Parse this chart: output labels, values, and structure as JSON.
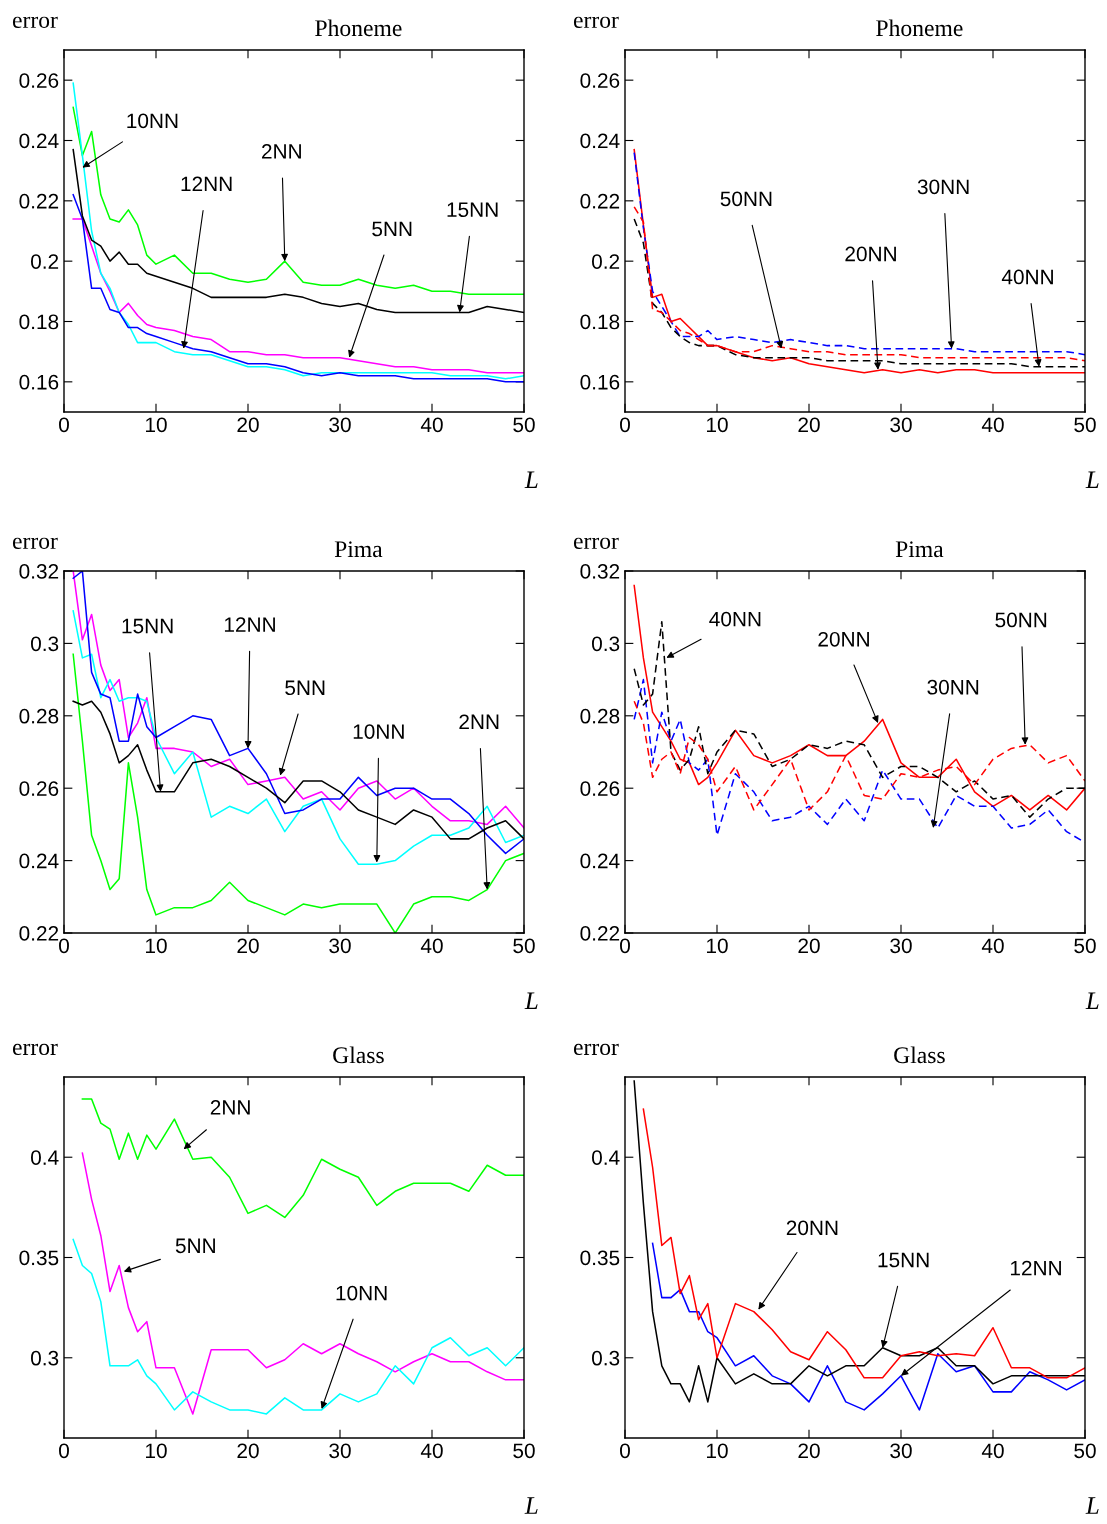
{
  "chart_data": [
    {
      "type": "line",
      "title": "Phoneme",
      "xlabel": "L",
      "ylabel": "error",
      "x": [
        1,
        2,
        3,
        4,
        5,
        6,
        7,
        8,
        9,
        10,
        12,
        14,
        16,
        18,
        20,
        22,
        24,
        26,
        28,
        30,
        32,
        34,
        36,
        38,
        40,
        42,
        44,
        46,
        48,
        50
      ],
      "xlim": [
        0,
        50
      ],
      "xticks": [
        0,
        10,
        20,
        30,
        40,
        50
      ],
      "ylim": [
        0.15,
        0.27
      ],
      "yticks": [
        0.16,
        0.18,
        0.2,
        0.22,
        0.24,
        0.26
      ],
      "grid": false,
      "series": [
        {
          "color": "#00ff00",
          "line_style": "solid",
          "values": [
            0.251,
            0.235,
            0.243,
            0.222,
            0.214,
            0.213,
            0.217,
            0.212,
            0.202,
            0.199,
            0.202,
            0.196,
            0.196,
            0.194,
            0.193,
            0.194,
            0.2,
            0.193,
            0.192,
            0.192,
            0.194,
            0.192,
            0.191,
            0.192,
            0.19,
            0.19,
            0.189,
            0.189,
            0.189,
            0.189
          ]
        },
        {
          "color": "#ff00ff",
          "line_style": "solid",
          "values": [
            0.214,
            0.214,
            0.205,
            0.196,
            0.19,
            0.183,
            0.186,
            0.182,
            0.179,
            0.178,
            0.177,
            0.175,
            0.174,
            0.17,
            0.17,
            0.169,
            0.169,
            0.168,
            0.168,
            0.168,
            0.167,
            0.166,
            0.165,
            0.165,
            0.164,
            0.164,
            0.164,
            0.163,
            0.163,
            0.163
          ]
        },
        {
          "color": "#00ffff",
          "line_style": "solid",
          "values": [
            0.259,
            0.235,
            0.21,
            0.196,
            0.191,
            0.183,
            0.179,
            0.173,
            0.173,
            0.173,
            0.17,
            0.169,
            0.169,
            0.167,
            0.165,
            0.165,
            0.164,
            0.162,
            0.163,
            0.163,
            0.163,
            0.163,
            0.163,
            0.163,
            0.163,
            0.162,
            0.162,
            0.162,
            0.161,
            0.162
          ]
        },
        {
          "color": "#0000ff",
          "line_style": "solid",
          "values": [
            0.222,
            0.214,
            0.191,
            0.191,
            0.184,
            0.183,
            0.178,
            0.178,
            0.176,
            0.175,
            0.173,
            0.171,
            0.17,
            0.168,
            0.166,
            0.166,
            0.165,
            0.163,
            0.162,
            0.163,
            0.162,
            0.162,
            0.162,
            0.161,
            0.161,
            0.161,
            0.161,
            0.161,
            0.16,
            0.16
          ]
        },
        {
          "color": "#000000",
          "line_style": "solid",
          "values": [
            0.237,
            0.215,
            0.207,
            0.205,
            0.2,
            0.203,
            0.199,
            0.199,
            0.196,
            0.195,
            0.193,
            0.191,
            0.188,
            0.188,
            0.188,
            0.188,
            0.189,
            0.188,
            0.186,
            0.185,
            0.186,
            0.184,
            0.183,
            0.183,
            0.183,
            0.183,
            0.183,
            0.185,
            0.184,
            0.183
          ]
        }
      ],
      "annotations": [
        {
          "text": "10NN",
          "x": 2,
          "y": 0.231
        },
        {
          "text": "12NN",
          "x": 13,
          "y": 0.171
        },
        {
          "text": "2NN",
          "x": 24,
          "y": 0.2
        },
        {
          "text": "5NN",
          "x": 31,
          "y": 0.168
        },
        {
          "text": "15NN",
          "x": 43,
          "y": 0.183
        }
      ]
    },
    {
      "type": "line",
      "title": "Phoneme",
      "xlabel": "L",
      "ylabel": "error",
      "x": [
        1,
        2,
        3,
        4,
        5,
        6,
        7,
        8,
        9,
        10,
        12,
        14,
        16,
        18,
        20,
        22,
        24,
        26,
        28,
        30,
        32,
        34,
        36,
        38,
        40,
        42,
        44,
        46,
        48,
        50
      ],
      "xlim": [
        0,
        50
      ],
      "xticks": [
        0,
        10,
        20,
        30,
        40,
        50
      ],
      "ylim": [
        0.15,
        0.27
      ],
      "yticks": [
        0.16,
        0.18,
        0.2,
        0.22,
        0.24,
        0.26
      ],
      "grid": false,
      "series": [
        {
          "color": "#ff0000",
          "line_style": "solid",
          "values": [
            0.237,
            0.212,
            0.188,
            0.189,
            0.18,
            0.181,
            0.178,
            0.175,
            0.172,
            0.172,
            0.17,
            0.168,
            0.167,
            0.168,
            0.166,
            0.165,
            0.164,
            0.163,
            0.164,
            0.163,
            0.164,
            0.163,
            0.164,
            0.164,
            0.163,
            0.163,
            0.163,
            0.163,
            0.163,
            0.163
          ]
        },
        {
          "color": "#0000ff",
          "line_style": "dashed",
          "values": [
            0.236,
            0.211,
            0.19,
            0.185,
            0.18,
            0.175,
            0.175,
            0.175,
            0.177,
            0.174,
            0.175,
            0.174,
            0.173,
            0.174,
            0.173,
            0.172,
            0.172,
            0.171,
            0.171,
            0.171,
            0.171,
            0.171,
            0.171,
            0.17,
            0.17,
            0.17,
            0.17,
            0.17,
            0.17,
            0.169
          ]
        },
        {
          "color": "#000000",
          "line_style": "dashed",
          "values": [
            0.214,
            0.206,
            0.186,
            0.183,
            0.178,
            0.175,
            0.173,
            0.172,
            0.172,
            0.172,
            0.169,
            0.168,
            0.168,
            0.168,
            0.168,
            0.167,
            0.167,
            0.167,
            0.167,
            0.166,
            0.166,
            0.166,
            0.166,
            0.166,
            0.166,
            0.166,
            0.165,
            0.165,
            0.165,
            0.165
          ]
        },
        {
          "color": "#ff0000",
          "line_style": "dashed",
          "values": [
            0.218,
            0.213,
            0.184,
            0.183,
            0.18,
            0.177,
            0.176,
            0.174,
            0.172,
            0.172,
            0.17,
            0.17,
            0.172,
            0.171,
            0.17,
            0.17,
            0.169,
            0.169,
            0.169,
            0.169,
            0.168,
            0.168,
            0.168,
            0.168,
            0.168,
            0.168,
            0.168,
            0.168,
            0.168,
            0.167
          ]
        }
      ],
      "annotations": [
        {
          "text": "50NN",
          "x": 17,
          "y": 0.171
        },
        {
          "text": "20NN",
          "x": 27.5,
          "y": 0.164
        },
        {
          "text": "30NN",
          "x": 35.5,
          "y": 0.171
        },
        {
          "text": "40NN",
          "x": 45,
          "y": 0.165
        }
      ]
    },
    {
      "type": "line",
      "title": "Pima",
      "xlabel": "L",
      "ylabel": "error",
      "x": [
        1,
        2,
        3,
        4,
        5,
        6,
        7,
        8,
        9,
        10,
        12,
        14,
        16,
        18,
        20,
        22,
        24,
        26,
        28,
        30,
        32,
        34,
        36,
        38,
        40,
        42,
        44,
        46,
        48,
        50
      ],
      "xlim": [
        0,
        50
      ],
      "xticks": [
        0,
        10,
        20,
        30,
        40,
        50
      ],
      "ylim": [
        0.22,
        0.32
      ],
      "yticks": [
        0.22,
        0.24,
        0.26,
        0.28,
        0.3,
        0.32
      ],
      "grid": false,
      "series": [
        {
          "color": "#00ff00",
          "line_style": "solid",
          "values": [
            0.297,
            0.273,
            0.247,
            0.24,
            0.232,
            0.235,
            0.267,
            0.252,
            0.232,
            0.225,
            0.227,
            0.227,
            0.229,
            0.234,
            0.229,
            0.227,
            0.225,
            0.228,
            0.227,
            0.228,
            0.228,
            0.228,
            0.22,
            0.228,
            0.23,
            0.23,
            0.229,
            0.232,
            0.24,
            0.242
          ]
        },
        {
          "color": "#ff00ff",
          "line_style": "solid",
          "values": [
            0.32,
            0.301,
            0.308,
            0.294,
            0.287,
            0.29,
            0.274,
            0.278,
            0.285,
            0.271,
            0.271,
            0.27,
            0.266,
            0.268,
            0.261,
            0.262,
            0.263,
            0.257,
            0.259,
            0.254,
            0.26,
            0.262,
            0.257,
            0.26,
            0.255,
            0.251,
            0.251,
            0.25,
            0.255,
            0.249
          ]
        },
        {
          "color": "#00ffff",
          "line_style": "solid",
          "values": [
            0.309,
            0.296,
            0.297,
            0.285,
            0.29,
            0.284,
            0.285,
            0.285,
            0.284,
            0.274,
            0.264,
            0.27,
            0.252,
            0.255,
            0.253,
            0.257,
            0.248,
            0.255,
            0.257,
            0.246,
            0.239,
            0.239,
            0.24,
            0.244,
            0.247,
            0.247,
            0.249,
            0.255,
            0.245,
            0.247
          ]
        },
        {
          "color": "#0000ff",
          "line_style": "solid",
          "values": [
            0.318,
            0.32,
            0.292,
            0.286,
            0.285,
            0.273,
            0.273,
            0.286,
            0.277,
            0.274,
            0.277,
            0.28,
            0.279,
            0.269,
            0.271,
            0.264,
            0.253,
            0.254,
            0.257,
            0.257,
            0.263,
            0.258,
            0.26,
            0.26,
            0.257,
            0.257,
            0.253,
            0.247,
            0.242,
            0.246
          ]
        },
        {
          "color": "#000000",
          "line_style": "solid",
          "values": [
            0.284,
            0.283,
            0.284,
            0.281,
            0.275,
            0.267,
            0.269,
            0.272,
            0.265,
            0.259,
            0.259,
            0.267,
            0.268,
            0.266,
            0.263,
            0.26,
            0.256,
            0.262,
            0.262,
            0.259,
            0.254,
            0.252,
            0.25,
            0.254,
            0.252,
            0.246,
            0.246,
            0.249,
            0.251,
            0.246
          ]
        }
      ],
      "annotations": [
        {
          "text": "15NN",
          "x": 10.5,
          "y": 0.259
        },
        {
          "text": "12NN",
          "x": 20,
          "y": 0.271
        },
        {
          "text": "5NN",
          "x": 23.5,
          "y": 0.2635
        },
        {
          "text": "10NN",
          "x": 34,
          "y": 0.2395
        },
        {
          "text": "2NN",
          "x": 46,
          "y": 0.232
        }
      ]
    },
    {
      "type": "line",
      "title": "Pima",
      "xlabel": "L",
      "ylabel": "error",
      "x": [
        1,
        2,
        3,
        4,
        5,
        6,
        7,
        8,
        9,
        10,
        12,
        14,
        16,
        18,
        20,
        22,
        24,
        26,
        28,
        30,
        32,
        34,
        36,
        38,
        40,
        42,
        44,
        46,
        48,
        50
      ],
      "xlim": [
        0,
        50
      ],
      "xticks": [
        0,
        10,
        20,
        30,
        40,
        50
      ],
      "ylim": [
        0.22,
        0.32
      ],
      "yticks": [
        0.22,
        0.24,
        0.26,
        0.28,
        0.3,
        0.32
      ],
      "grid": false,
      "series": [
        {
          "color": "#ff0000",
          "line_style": "solid",
          "values": [
            0.316,
            0.296,
            0.281,
            0.277,
            0.273,
            0.268,
            0.267,
            0.261,
            0.263,
            0.267,
            0.276,
            0.269,
            0.267,
            0.269,
            0.272,
            0.269,
            0.269,
            0.273,
            0.279,
            0.267,
            0.263,
            0.263,
            0.268,
            0.259,
            0.255,
            0.258,
            0.254,
            0.258,
            0.254,
            0.26
          ]
        },
        {
          "color": "#0000ff",
          "line_style": "dashed",
          "values": [
            0.279,
            0.29,
            0.267,
            0.281,
            0.273,
            0.279,
            0.267,
            0.265,
            0.268,
            0.247,
            0.264,
            0.259,
            0.251,
            0.252,
            0.255,
            0.25,
            0.257,
            0.251,
            0.265,
            0.257,
            0.257,
            0.249,
            0.258,
            0.255,
            0.255,
            0.249,
            0.25,
            0.254,
            0.248,
            0.245
          ]
        },
        {
          "color": "#000000",
          "line_style": "dashed",
          "values": [
            0.293,
            0.283,
            0.286,
            0.306,
            0.27,
            0.265,
            0.268,
            0.277,
            0.264,
            0.27,
            0.276,
            0.275,
            0.266,
            0.268,
            0.272,
            0.271,
            0.273,
            0.272,
            0.263,
            0.266,
            0.266,
            0.263,
            0.259,
            0.262,
            0.257,
            0.258,
            0.252,
            0.257,
            0.26,
            0.26
          ]
        },
        {
          "color": "#ff0000",
          "line_style": "dashed",
          "values": [
            0.284,
            0.278,
            0.263,
            0.268,
            0.27,
            0.264,
            0.274,
            0.272,
            0.268,
            0.259,
            0.266,
            0.254,
            0.261,
            0.268,
            0.254,
            0.259,
            0.269,
            0.258,
            0.257,
            0.264,
            0.263,
            0.265,
            0.266,
            0.261,
            0.268,
            0.271,
            0.272,
            0.267,
            0.269,
            0.262
          ]
        }
      ],
      "annotations": [
        {
          "text": "40NN",
          "x": 4.5,
          "y": 0.296
        },
        {
          "text": "20NN",
          "x": 27.5,
          "y": 0.278
        },
        {
          "text": "30NN",
          "x": 33.5,
          "y": 0.249
        },
        {
          "text": "50NN",
          "x": 43.5,
          "y": 0.272
        }
      ]
    },
    {
      "type": "line",
      "title": "Glass",
      "xlabel": "L",
      "ylabel": "error",
      "x": [
        1,
        2,
        3,
        4,
        5,
        6,
        7,
        8,
        9,
        10,
        12,
        14,
        16,
        18,
        20,
        22,
        24,
        26,
        28,
        30,
        32,
        34,
        36,
        38,
        40,
        42,
        44,
        46,
        48,
        50
      ],
      "xlim": [
        0,
        50
      ],
      "xticks": [
        0,
        10,
        20,
        30,
        40,
        50
      ],
      "ylim": [
        0.26,
        0.44
      ],
      "yticks": [
        0.3,
        0.35,
        0.4
      ],
      "grid": false,
      "series": [
        {
          "color": "#00ff00",
          "line_style": "solid",
          "values": [
            null,
            0.429,
            0.429,
            0.417,
            0.414,
            0.399,
            0.412,
            0.399,
            0.411,
            0.404,
            0.419,
            0.399,
            0.4,
            0.39,
            0.372,
            0.376,
            0.37,
            0.381,
            0.399,
            0.394,
            0.39,
            0.376,
            0.383,
            0.387,
            0.387,
            0.387,
            0.383,
            0.396,
            0.391,
            0.391
          ]
        },
        {
          "color": "#ff00ff",
          "line_style": "solid",
          "values": [
            null,
            0.402,
            0.379,
            0.361,
            0.333,
            0.346,
            0.325,
            0.313,
            0.318,
            0.295,
            0.295,
            0.272,
            0.304,
            0.304,
            0.304,
            0.295,
            0.299,
            0.307,
            0.302,
            0.307,
            0.302,
            0.298,
            0.293,
            0.298,
            0.302,
            0.298,
            0.298,
            0.293,
            0.289,
            0.289
          ]
        },
        {
          "color": "#00ffff",
          "line_style": "solid",
          "values": [
            0.359,
            0.346,
            0.342,
            0.328,
            0.296,
            0.296,
            0.296,
            0.299,
            0.291,
            0.287,
            0.274,
            0.283,
            0.278,
            0.274,
            0.274,
            0.272,
            0.28,
            0.274,
            0.274,
            0.282,
            0.278,
            0.282,
            0.296,
            0.287,
            0.305,
            0.31,
            0.301,
            0.305,
            0.296,
            0.305
          ]
        }
      ],
      "annotations": [
        {
          "text": "2NN",
          "x": 13,
          "y": 0.404
        },
        {
          "text": "5NN",
          "x": 6.5,
          "y": 0.343
        },
        {
          "text": "10NN",
          "x": 28,
          "y": 0.2745
        }
      ]
    },
    {
      "type": "line",
      "title": "Glass",
      "xlabel": "L",
      "ylabel": "error",
      "x": [
        1,
        2,
        3,
        4,
        5,
        6,
        7,
        8,
        9,
        10,
        12,
        14,
        16,
        18,
        20,
        22,
        24,
        26,
        28,
        30,
        32,
        34,
        36,
        38,
        40,
        42,
        44,
        46,
        48,
        50
      ],
      "xlim": [
        0,
        50
      ],
      "xticks": [
        0,
        10,
        20,
        30,
        40,
        50
      ],
      "ylim": [
        0.26,
        0.44
      ],
      "yticks": [
        0.3,
        0.35,
        0.4
      ],
      "grid": false,
      "series": [
        {
          "color": "#0000ff",
          "line_style": "solid",
          "values": [
            null,
            null,
            0.357,
            0.33,
            0.33,
            0.334,
            0.323,
            0.323,
            0.313,
            0.31,
            0.296,
            0.301,
            0.291,
            0.287,
            0.278,
            0.296,
            0.278,
            0.274,
            0.282,
            0.291,
            0.274,
            0.302,
            0.293,
            0.296,
            0.283,
            0.283,
            0.293,
            0.289,
            0.284,
            0.289
          ]
        },
        {
          "color": "#000000",
          "line_style": "solid",
          "values": [
            0.438,
            0.377,
            0.323,
            0.296,
            0.287,
            0.287,
            0.278,
            0.296,
            0.278,
            0.3,
            0.287,
            0.292,
            0.287,
            0.287,
            0.296,
            0.291,
            0.296,
            0.296,
            0.305,
            0.301,
            0.301,
            0.305,
            0.296,
            0.296,
            0.287,
            0.291,
            0.291,
            0.291,
            0.291,
            0.291
          ]
        },
        {
          "color": "#ff0000",
          "line_style": "solid",
          "values": [
            null,
            0.424,
            0.395,
            0.356,
            0.36,
            0.332,
            0.341,
            0.319,
            0.327,
            0.3,
            0.327,
            0.323,
            0.314,
            0.303,
            0.299,
            0.313,
            0.304,
            0.29,
            0.29,
            0.301,
            0.303,
            0.301,
            0.302,
            0.301,
            0.315,
            0.295,
            0.295,
            0.29,
            0.29,
            0.295
          ]
        }
      ],
      "annotations": [
        {
          "text": "20NN",
          "x": 14.5,
          "y": 0.324
        },
        {
          "text": "15NN",
          "x": 28,
          "y": 0.305
        },
        {
          "text": "12NN",
          "x": 30,
          "y": 0.291
        }
      ]
    }
  ]
}
